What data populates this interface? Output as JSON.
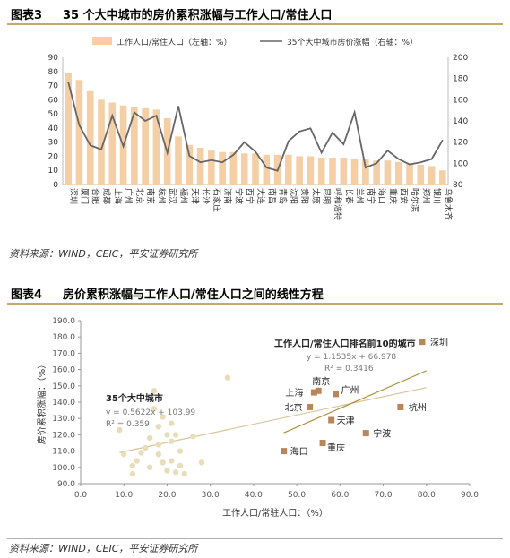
{
  "figure3": {
    "number": "图表3",
    "title": "35 个大中城市的房价累积涨幅与工作人口/常住人口",
    "source": "资料来源：WIND，CEIC，平安证券研究所"
  },
  "figure4": {
    "number": "图表4",
    "title": "房价累积涨幅与工作人口/常住人口之间的线性方程",
    "source": "资料来源：WIND，CEIC，平安证券研究所"
  },
  "chart_data": [
    {
      "type": "bar",
      "categories": [
        "深圳",
        "厦门",
        "合肥",
        "成都",
        "上海",
        "广州",
        "北京",
        "南京",
        "杭州",
        "武汉",
        "福州",
        "天津",
        "长沙",
        "石家庄",
        "济南",
        "宁波",
        "西宁",
        "大连",
        "南昌",
        "青岛",
        "沈阳",
        "贵阳",
        "太原",
        "昆明",
        "呼和浩特",
        "长春",
        "兰州",
        "南宁",
        "海口",
        "重庆",
        "西安",
        "哈尔滨",
        "郑州",
        "银川",
        "乌鲁木齐"
      ],
      "series": [
        {
          "name": "工作人口/常住人口（左轴：%）",
          "axis": "left",
          "values": [
            79,
            74,
            66,
            60,
            58,
            56,
            55,
            54,
            53,
            47,
            34,
            28,
            26,
            24,
            23,
            23,
            22,
            22,
            21,
            21,
            21,
            20,
            20,
            19,
            19,
            19,
            18,
            18,
            17,
            17,
            16,
            15,
            14,
            13,
            10
          ]
        },
        {
          "name": "35个大中城市房价涨幅（右轴：%）",
          "axis": "right",
          "values": [
            177,
            136,
            117,
            113,
            145,
            116,
            148,
            140,
            145,
            110,
            154,
            107,
            101,
            103,
            101,
            108,
            120,
            111,
            96,
            93,
            121,
            130,
            133,
            110,
            129,
            118,
            148,
            96,
            100,
            112,
            104,
            99,
            101,
            104,
            122
          ]
        }
      ],
      "ylim_left": [
        0,
        90
      ],
      "ylim_right": [
        80,
        200
      ],
      "yticks_left": [
        0,
        10,
        20,
        30,
        40,
        50,
        60,
        70,
        80,
        90
      ],
      "yticks_right": [
        80,
        100,
        120,
        140,
        160,
        180,
        200
      ],
      "colors": {
        "bar": "#f4cfa6",
        "line": "#666666"
      },
      "legend_position": "top"
    },
    {
      "type": "scatter",
      "xlabel": "工作人口/常驻人口：（%）",
      "ylabel": "房价累积涨幅：（%）",
      "xlim": [
        0,
        90
      ],
      "ylim": [
        90,
        190
      ],
      "xticks": [
        "0.0",
        "10.0",
        "20.0",
        "30.0",
        "40.0",
        "50.0",
        "60.0",
        "70.0",
        "80.0",
        "90.0"
      ],
      "yticks": [
        "90.0",
        "100.0",
        "110.0",
        "120.0",
        "130.0",
        "140.0",
        "150.0",
        "160.0",
        "170.0",
        "180.0",
        "190.0"
      ],
      "series": [
        {
          "name": "35个大中城市",
          "color": "#e8ddb8",
          "points": [
            [
              9,
              123
            ],
            [
              10,
              108
            ],
            [
              12,
              101
            ],
            [
              12,
              96
            ],
            [
              13,
              104
            ],
            [
              14,
              109
            ],
            [
              15,
              112
            ],
            [
              16,
              118
            ],
            [
              16,
              100
            ],
            [
              17,
              136
            ],
            [
              17,
              147
            ],
            [
              18,
              125
            ],
            [
              18,
              114
            ],
            [
              18,
              108
            ],
            [
              19,
              131
            ],
            [
              19,
              103
            ],
            [
              20,
              98
            ],
            [
              20,
              120
            ],
            [
              21,
              116
            ],
            [
              21,
              104
            ],
            [
              21,
              127
            ],
            [
              22,
              120
            ],
            [
              22,
              97
            ],
            [
              23,
              110
            ],
            [
              23,
              101
            ],
            [
              24,
              96
            ],
            [
              26,
              119
            ],
            [
              28,
              103
            ],
            [
              34,
              155
            ]
          ],
          "equation": "y = 0.5622x + 103.99",
          "r2": "R² = 0.359",
          "trend": [
            [
              9,
              109.1
            ],
            [
              80,
              148.96
            ]
          ]
        },
        {
          "name": "工作人口/常住人口排名前10的城市",
          "color": "#b9865c",
          "points": [
            {
              "x": 47,
              "y": 110,
              "label": "海口"
            },
            {
              "x": 53,
              "y": 137,
              "label": "北京"
            },
            {
              "x": 54,
              "y": 146,
              "label": "上海"
            },
            {
              "x": 55,
              "y": 147,
              "label": "南京"
            },
            {
              "x": 56,
              "y": 115,
              "label": "重庆"
            },
            {
              "x": 58,
              "y": 129,
              "label": "天津"
            },
            {
              "x": 59,
              "y": 145,
              "label": "广州"
            },
            {
              "x": 66,
              "y": 121,
              "label": "宁波"
            },
            {
              "x": 74,
              "y": 137,
              "label": "杭州"
            },
            {
              "x": 79,
              "y": 177,
              "label": "深圳"
            }
          ],
          "equation": "y = 1.1535x + 66.978",
          "r2": "R² = 0.3416",
          "trend": [
            [
              47,
              121.2
            ],
            [
              80,
              159.3
            ]
          ]
        }
      ]
    }
  ]
}
